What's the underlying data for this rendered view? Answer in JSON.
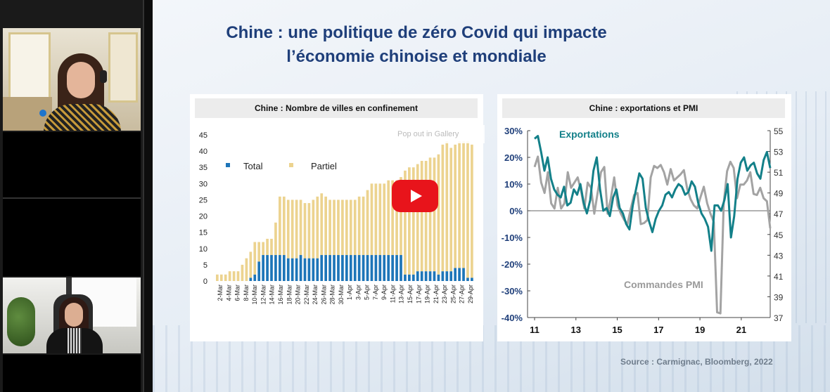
{
  "slide": {
    "title_line1": "Chine : une politique de zéro Covid qui impacte",
    "title_line2": "l’économie chinoise et mondiale",
    "source": "Source : Carmignac, Bloomberg, 2022"
  },
  "overlay": {
    "popout_label": "Pop out in Gallery"
  },
  "colors": {
    "title": "#1f3f7a",
    "total": "#1d75b8",
    "partiel": "#ecd38f",
    "exports": "#138089",
    "pmi": "#a3a3a3",
    "play": "#e8141b"
  },
  "chart_data": [
    {
      "type": "bar",
      "title": "Chine : Nombre de villes en confinement",
      "stacked": true,
      "xlabel": "",
      "ylabel": "",
      "ylim": [
        0,
        45
      ],
      "yticks": [
        0,
        5,
        10,
        15,
        20,
        25,
        30,
        35,
        40,
        45
      ],
      "tick_labels": [
        "2-Mar",
        "4-Mar",
        "6-Mar",
        "8-Mar",
        "10-Mar",
        "12-Mar",
        "14-Mar",
        "16-Mar",
        "18-Mar",
        "20-Mar",
        "22-Mar",
        "24-Mar",
        "26-Mar",
        "28-Mar",
        "30-Mar",
        "1-Apr",
        "3-Apr",
        "5-Apr",
        "7-Apr",
        "9-Apr",
        "11-Apr",
        "13-Apr",
        "15-Apr",
        "17-Apr",
        "19-Apr",
        "21-Apr",
        "23-Apr",
        "25-Apr",
        "27-Apr",
        "29-Apr"
      ],
      "legend_position": "top-left",
      "series": [
        {
          "name": "Total",
          "values": [
            0,
            0,
            0,
            0,
            0,
            0,
            0,
            0,
            1,
            2,
            6,
            8,
            8,
            8,
            8,
            8,
            8,
            7,
            7,
            7,
            8,
            7,
            7,
            7,
            7,
            8,
            8,
            8,
            8,
            8,
            8,
            8,
            8,
            8,
            8,
            8,
            8,
            8,
            8,
            8,
            8,
            8,
            8,
            8,
            8,
            2,
            2,
            2,
            3,
            3,
            3,
            3,
            3,
            2,
            3,
            3,
            3,
            4,
            4,
            4,
            1,
            1
          ]
        },
        {
          "name": "Partiel",
          "values": [
            2,
            2,
            2,
            3,
            3,
            3,
            5,
            7,
            8,
            10,
            6,
            4,
            5,
            5,
            10,
            18,
            18,
            18,
            18,
            18,
            17,
            17,
            17,
            18,
            19,
            19,
            18,
            17,
            17,
            17,
            17,
            17,
            17,
            17,
            18,
            18,
            20,
            22,
            22,
            22,
            22,
            23,
            23,
            23,
            24,
            32,
            33,
            33,
            33,
            34,
            34,
            35,
            35,
            37,
            39,
            40,
            38,
            38,
            39,
            39,
            42,
            41
          ]
        }
      ]
    },
    {
      "type": "line",
      "title": "Chine : exportations et PMI",
      "x_ticks": [
        "11",
        "13",
        "15",
        "17",
        "19",
        "21"
      ],
      "y_left": {
        "ylim": [
          -40,
          30
        ],
        "ticks": [
          "30%",
          "20%",
          "10%",
          "0%",
          "-10%",
          "-20%",
          "-30%",
          "-40%"
        ]
      },
      "y_right": {
        "ylim": [
          37,
          55
        ],
        "ticks": [
          "55",
          "53",
          "51",
          "49",
          "47",
          "45",
          "43",
          "41",
          "39",
          "37"
        ]
      },
      "annotations": [
        "Exportations",
        "Commandes PMI"
      ],
      "series": [
        {
          "name": "Exportations",
          "axis": "left",
          "x_start": 2011,
          "x_end": 2022.4,
          "values": [
            27,
            28,
            22,
            15,
            20,
            12,
            8,
            6,
            5,
            9,
            2,
            3,
            8,
            6,
            10,
            3,
            -1,
            4,
            15,
            20,
            8,
            0,
            1,
            -2,
            5,
            8,
            1,
            -1,
            -5,
            -7,
            2,
            8,
            14,
            12,
            1,
            -4,
            -8,
            -3,
            0,
            2,
            6,
            7,
            5,
            8,
            10,
            9,
            6,
            7,
            11,
            9,
            3,
            -1,
            -3,
            -6,
            -15,
            2,
            2,
            0,
            4,
            10,
            -10,
            -2,
            12,
            18,
            20,
            15,
            17,
            18,
            14,
            12,
            19,
            22,
            16
          ]
        },
        {
          "name": "Commandes PMI",
          "axis": "right",
          "x_start": 2011,
          "x_end": 2022.4,
          "values": [
            51.5,
            52.5,
            50,
            49,
            51,
            48,
            47.5,
            49.5,
            47.5,
            48,
            51,
            49.5,
            50,
            50.5,
            49.2,
            47.5,
            50,
            49.5,
            47,
            49,
            51,
            51.5,
            47,
            48.5,
            50.5,
            47.8,
            47,
            46.4,
            46,
            47.5,
            48.8,
            49,
            46,
            46.1,
            46.4,
            50.5,
            51.6,
            51.4,
            51.7,
            51,
            49.8,
            51.3,
            50.2,
            50.5,
            50.8,
            51.2,
            49.4,
            48.4,
            47.8,
            47.5,
            48.6,
            49.6,
            48,
            47,
            46.2,
            37.5,
            37.4,
            48,
            51.1,
            52,
            51.4,
            48.5,
            49.8,
            49.8,
            50.2,
            51,
            48.9,
            48.8,
            49.5,
            48.5,
            48.2,
            45.6
          ]
        }
      ]
    }
  ]
}
